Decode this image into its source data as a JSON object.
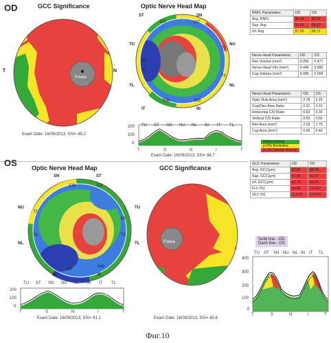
{
  "od": {
    "eye_label": "OD",
    "gcc_title": "GCC Significance",
    "onh_title": "Optic Nerve Head Map",
    "fovea_label": "Fovea",
    "gcc_side_left": "T",
    "gcc_side_right": "N",
    "onh_labels": {
      "st": "ST",
      "sn": "SN",
      "tu": "TU",
      "nu": "NU",
      "tl": "TL",
      "nl": "NL",
      "it": "IT",
      "in": "IN"
    },
    "onh_values": {
      "st": "119",
      "sn": "127",
      "nu": "77",
      "nl": "73",
      "it": "100",
      "in": "159",
      "tu": "92",
      "tl": "97"
    },
    "gcc_exam": "Exam Date: 16/09/2013, SSI= 85.2",
    "onh_exam": "Exam Date: 16/09/2013, SSI= 84.7"
  },
  "os": {
    "eye_label": "OS",
    "gcc_title": "GCC Significance",
    "onh_title": "Optic Nerve Head Map",
    "fovea_label": "Fovea",
    "onh_labels": {
      "st": "ST",
      "sn": "SN",
      "tu": "TU",
      "nu": "NU",
      "tl": "TL",
      "nl": "NL",
      "it": "IT",
      "in": "IN"
    },
    "onh_values": {
      "st": "130",
      "sn": "119",
      "nu": "72",
      "nl": "79",
      "it": "149",
      "in": "96",
      "tu": "65",
      "tl": "75"
    },
    "onh_exam": "Exam Date: 16/09/2013, SSI= 81.1",
    "gcc_exam": "Exam Date: 16/09/2013, SSI= 65.6"
  },
  "rnfl_table": {
    "headers": [
      "RNFL Parameters",
      "OD",
      "OS"
    ],
    "rows": [
      [
        "Avg. RNFL",
        "96.44",
        "88.52"
      ],
      [
        "Sup. Avg",
        "95.06",
        "86.82"
      ],
      [
        "Inf. Avg",
        "97.83",
        "89.71"
      ]
    ]
  },
  "nerve_head_table": {
    "headers": [
      "Nerve Head Parameters",
      "OD",
      "OS"
    ],
    "rows": [
      [
        "Rim Volume (mm³)",
        "0.256",
        "0.477"
      ],
      [
        "Nerve Head Vlm (mm³)",
        "0.446",
        "0.695"
      ],
      [
        "Cup Volume (mm³)",
        "0.085",
        "0.009"
      ]
    ]
  },
  "disc_table": {
    "headers": [
      "Nerve Head Parameters",
      "OD",
      "OS"
    ],
    "rows": [
      [
        "Optic Disk Area (mm²)",
        "2.78",
        "2.15"
      ],
      [
        "Cup/Disc Area Ratio",
        "0.21",
        "0.19"
      ],
      [
        "Horizontal C/D Ratio",
        "0.63",
        "0.39"
      ],
      [
        "Vertical C/D Ratio",
        "0.56",
        "0.55"
      ],
      [
        "Rim Area (mm²)",
        "2.19",
        "1.75"
      ],
      [
        "Cup Area (mm²)",
        "0.59",
        "0.40"
      ]
    ]
  },
  "legend": {
    "items": [
      "Within Normal",
      "p<5% Borderline",
      "p<1% Outside Normal"
    ]
  },
  "gcc_table": {
    "headers": [
      "GCC Parameters",
      "OD",
      "OS"
    ],
    "rows": [
      [
        "Avg. GCC(μm)",
        "62.86",
        "58.68"
      ],
      [
        "Sup. GCC(μm)",
        "62.06",
        "61.07"
      ],
      [
        "Inf. GCC(μm)",
        "63.70",
        "56.09"
      ],
      [
        "FLV (%)",
        "6.608",
        "12.097"
      ],
      [
        "GLV (%)",
        "11.576",
        "16.479"
      ]
    ]
  },
  "line_legend": {
    "solid": "Solid line - OD",
    "dash": "Dash line - OS"
  },
  "tsnit_small": {
    "sectors": [
      "TU",
      "ST",
      "SN",
      "NU",
      "NL",
      "IN",
      "IT",
      "TL"
    ],
    "xaxis": [
      "T",
      "S",
      "N",
      "I",
      "T"
    ],
    "yticks": [
      "200",
      "100",
      "0"
    ]
  },
  "tsnit_big": {
    "sectors": [
      "TU",
      "ST",
      "SN",
      "NU",
      "NL",
      "IN",
      "IT",
      "TL"
    ],
    "xaxis": [
      "T",
      "S",
      "N",
      "I",
      "T"
    ],
    "yticks": [
      "400",
      "300",
      "200",
      "100",
      "0"
    ]
  },
  "figure_caption": "Фиг.10"
}
